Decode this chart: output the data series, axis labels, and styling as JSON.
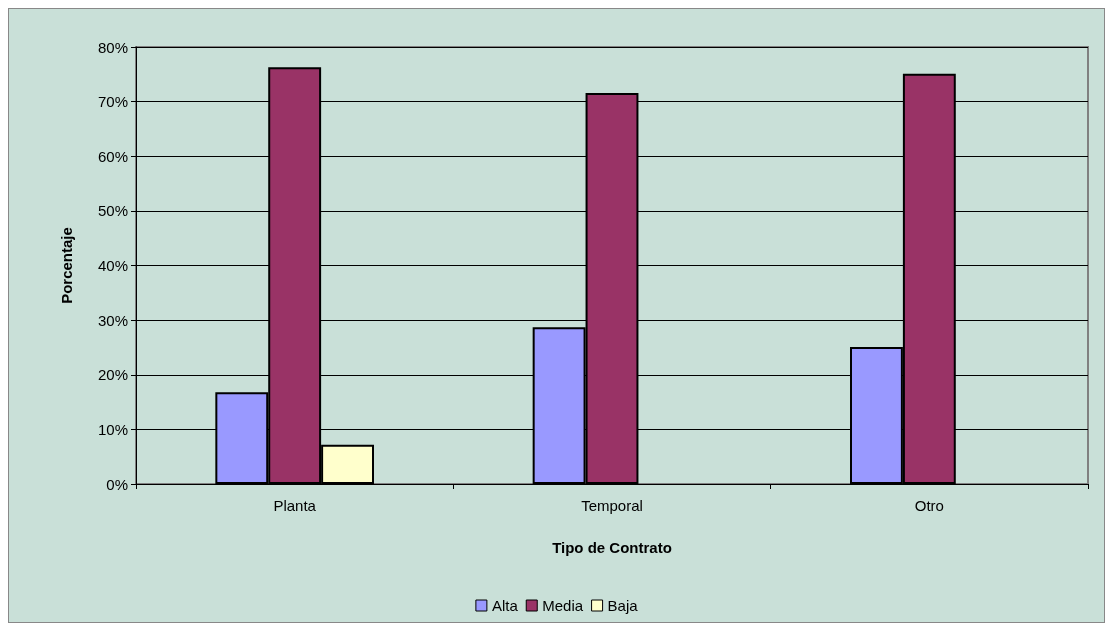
{
  "chart_data": {
    "type": "bar",
    "xlabel": "Tipo de Contrato",
    "ylabel": "Porcentaje",
    "categories": [
      "Planta",
      "Temporal",
      "Otro"
    ],
    "series": [
      {
        "name": "Alta",
        "color": "#9999ff",
        "values": [
          16.8,
          28.7,
          25.1
        ]
      },
      {
        "name": "Media",
        "color": "#993366",
        "values": [
          76.3,
          71.6,
          75.1
        ]
      },
      {
        "name": "Baja",
        "color": "#ffffcc",
        "values": [
          7.2,
          null,
          null
        ]
      }
    ],
    "ylim": [
      0,
      80
    ],
    "yticks": [
      {
        "value": 0,
        "label": "0%"
      },
      {
        "value": 10,
        "label": "10%"
      },
      {
        "value": 20,
        "label": "20%"
      },
      {
        "value": 30,
        "label": "30%"
      },
      {
        "value": 40,
        "label": "40%"
      },
      {
        "value": 50,
        "label": "50%"
      },
      {
        "value": 60,
        "label": "60%"
      },
      {
        "value": 70,
        "label": "70%"
      },
      {
        "value": 80,
        "label": "80%"
      }
    ],
    "grid": "y",
    "legend": "bottom"
  }
}
